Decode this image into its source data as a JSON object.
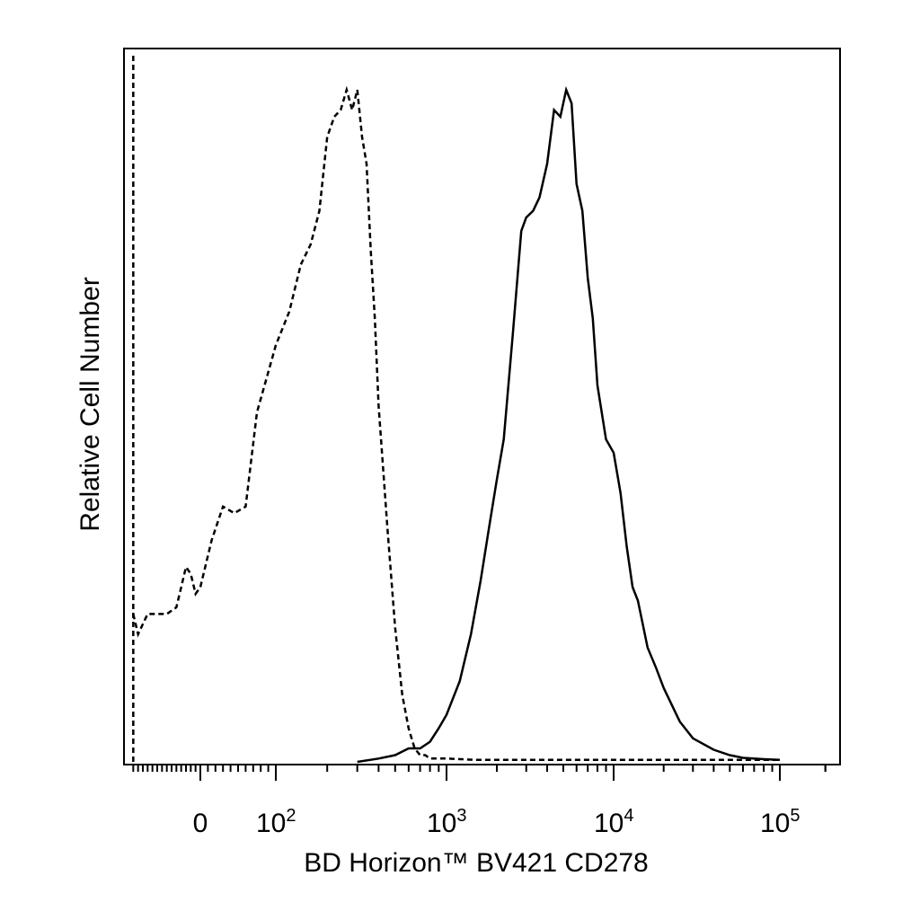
{
  "chart_data": {
    "type": "area",
    "title": "",
    "xlabel": "BD Horizon™ BV421 CD278",
    "ylabel": "Relative Cell Number",
    "x_scale": "biexponential",
    "xlim": [
      -150,
      250000
    ],
    "ylim": [
      0,
      1.08
    ],
    "grid": false,
    "legend": "none",
    "tick_labels": [
      {
        "value": 0,
        "base": "0",
        "exp": ""
      },
      {
        "value": 100,
        "base": "10",
        "exp": "2"
      },
      {
        "value": 1000,
        "base": "10",
        "exp": "3"
      },
      {
        "value": 10000,
        "base": "10",
        "exp": "4"
      },
      {
        "value": 100000,
        "base": "10",
        "exp": "5"
      }
    ],
    "series": [
      {
        "style": "dashed",
        "color": "#000000",
        "x": [
          -140,
          -130,
          -110,
          -90,
          -70,
          -50,
          -40,
          -30,
          -20,
          -10,
          0,
          15,
          30,
          45,
          60,
          75,
          90,
          100,
          120,
          140,
          160,
          180,
          200,
          220,
          240,
          260,
          280,
          300,
          320,
          340,
          360,
          380,
          400,
          450,
          500,
          550,
          600,
          650,
          700,
          750,
          800,
          900,
          1000,
          1500,
          3000,
          10000,
          30000,
          100000
        ],
        "y": [
          0.22,
          0.19,
          0.22,
          0.22,
          0.22,
          0.23,
          0.26,
          0.29,
          0.28,
          0.25,
          0.26,
          0.33,
          0.38,
          0.37,
          0.38,
          0.52,
          0.58,
          0.62,
          0.67,
          0.74,
          0.77,
          0.82,
          0.93,
          0.96,
          0.97,
          1.0,
          0.97,
          1.0,
          0.93,
          0.89,
          0.76,
          0.66,
          0.53,
          0.35,
          0.2,
          0.1,
          0.05,
          0.02,
          0.01,
          0.01,
          0.005,
          0.005,
          0.005,
          0.003,
          0.003,
          0.003,
          0.003,
          0.003
        ]
      },
      {
        "style": "solid",
        "color": "#000000",
        "x": [
          300,
          400,
          500,
          600,
          700,
          800,
          900,
          1000,
          1200,
          1400,
          1600,
          1800,
          2000,
          2200,
          2500,
          2800,
          3000,
          3300,
          3600,
          4000,
          4400,
          4800,
          5200,
          5600,
          6000,
          6500,
          7000,
          7500,
          8000,
          9000,
          10000,
          11000,
          12000,
          13000,
          14000,
          16000,
          18000,
          20000,
          25000,
          30000,
          40000,
          50000,
          60000,
          80000,
          100000
        ],
        "y": [
          0.0,
          0.005,
          0.01,
          0.02,
          0.02,
          0.03,
          0.05,
          0.07,
          0.12,
          0.19,
          0.27,
          0.35,
          0.42,
          0.48,
          0.64,
          0.79,
          0.81,
          0.82,
          0.84,
          0.89,
          0.97,
          0.96,
          1.0,
          0.98,
          0.86,
          0.82,
          0.72,
          0.66,
          0.56,
          0.48,
          0.46,
          0.4,
          0.32,
          0.26,
          0.24,
          0.17,
          0.14,
          0.11,
          0.06,
          0.035,
          0.018,
          0.01,
          0.006,
          0.004,
          0.003
        ]
      }
    ]
  }
}
